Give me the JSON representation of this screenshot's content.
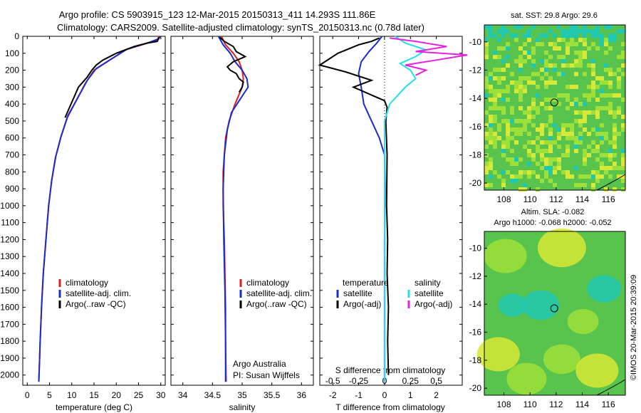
{
  "title": {
    "line1": "Argo profile: CS 5903915_123 12-Mar-2015 20150313_411 14.293S 111.86E",
    "line2": "Climatology: CARS2009. Satellite-adjusted climatology: synTS_20150313.nc (0.78d later)"
  },
  "colors": {
    "clim": "#e02020",
    "sat": "#1a2ccc",
    "argo": "#000000",
    "sal_sat": "#22e0e8",
    "sal_argo": "#e820e0",
    "map_bg": "#58c44e",
    "map_light": "#9ee03a",
    "map_yellow": "#d8e836",
    "map_cyan": "#20c8b0",
    "map_blue": "#2a7ac8"
  },
  "chart_data": [
    {
      "type": "line",
      "name": "temperature",
      "xlabel": "temperature (deg C)",
      "ylabel": "",
      "xlim": [
        -1,
        31
      ],
      "ylim": [
        2060,
        0
      ],
      "xticks": [
        0,
        5,
        10,
        15,
        20,
        25,
        30
      ],
      "yticks": [
        0,
        100,
        200,
        300,
        400,
        500,
        600,
        700,
        800,
        900,
        1000,
        1100,
        1200,
        1300,
        1400,
        1500,
        1600,
        1700,
        1800,
        1900,
        2000
      ],
      "legend": [
        "climatology",
        "satellite-adj. clim.",
        "Argo(..raw -QC)"
      ],
      "legend_placement": "bottom-center",
      "series": [
        {
          "name": "climatology",
          "points": [
            [
              29.6,
              0
            ],
            [
              29.2,
              20
            ],
            [
              27,
              40
            ],
            [
              22,
              80
            ],
            [
              18,
              150
            ],
            [
              15,
              200
            ],
            [
              13,
              280
            ],
            [
              11,
              380
            ],
            [
              9,
              480
            ],
            [
              7.5,
              600
            ],
            [
              6.3,
              720
            ],
            [
              5.5,
              850
            ],
            [
              4.8,
              1000
            ],
            [
              4.2,
              1200
            ],
            [
              3.6,
              1400
            ],
            [
              3.2,
              1600
            ],
            [
              2.9,
              1800
            ],
            [
              2.6,
              2040
            ]
          ]
        },
        {
          "name": "satellite-adj. clim.",
          "points": [
            [
              29.8,
              0
            ],
            [
              29.5,
              15
            ],
            [
              27.5,
              35
            ],
            [
              22.5,
              75
            ],
            [
              18.5,
              140
            ],
            [
              15.5,
              190
            ],
            [
              13.5,
              260
            ],
            [
              11.2,
              370
            ],
            [
              9.1,
              470
            ],
            [
              7.6,
              590
            ],
            [
              6.4,
              710
            ],
            [
              5.5,
              850
            ],
            [
              4.8,
              1000
            ],
            [
              4.2,
              1200
            ],
            [
              3.6,
              1400
            ],
            [
              3.2,
              1600
            ],
            [
              2.9,
              1800
            ],
            [
              2.6,
              2040
            ]
          ]
        },
        {
          "name": "Argo(..raw -QC)",
          "points": [
            [
              29.7,
              5
            ],
            [
              29.2,
              30
            ],
            [
              27,
              40
            ],
            [
              24,
              60
            ],
            [
              20,
              100
            ],
            [
              17,
              140
            ],
            [
              15.5,
              170
            ],
            [
              14.5,
              200
            ],
            [
              13.5,
              240
            ],
            [
              12.5,
              270
            ],
            [
              11.5,
              300
            ],
            [
              10.5,
              360
            ],
            [
              9.5,
              420
            ],
            [
              8.5,
              480
            ]
          ]
        }
      ]
    },
    {
      "type": "line",
      "name": "salinity",
      "xlabel": "salinity",
      "xlim": [
        33.8,
        36.2
      ],
      "ylim": [
        2060,
        0
      ],
      "xticks": [
        34,
        34.5,
        35,
        35.5,
        36
      ],
      "legend": [
        "climatology",
        "satellite-adj. clim.",
        "Argo(..raw -QC)"
      ],
      "legend_placement": "bottom-center",
      "annotation": [
        "Argo Australia",
        "PI: Susan Wijffels"
      ],
      "series": [
        {
          "name": "climatology",
          "points": [
            [
              34.65,
              0
            ],
            [
              34.72,
              50
            ],
            [
              34.85,
              100
            ],
            [
              34.95,
              150
            ],
            [
              35.0,
              200
            ],
            [
              35.02,
              250
            ],
            [
              35.0,
              300
            ],
            [
              34.88,
              400
            ],
            [
              34.78,
              500
            ],
            [
              34.72,
              600
            ],
            [
              34.68,
              800
            ],
            [
              34.68,
              1000
            ],
            [
              34.7,
              1200
            ],
            [
              34.71,
              1400
            ],
            [
              34.72,
              1600
            ],
            [
              34.72,
              1800
            ],
            [
              34.73,
              2040
            ]
          ]
        },
        {
          "name": "satellite-adj. clim.",
          "points": [
            [
              34.6,
              0
            ],
            [
              34.68,
              50
            ],
            [
              34.8,
              100
            ],
            [
              34.88,
              150
            ],
            [
              35.0,
              200
            ],
            [
              35.08,
              250
            ],
            [
              35.1,
              300
            ],
            [
              34.95,
              380
            ],
            [
              34.82,
              450
            ],
            [
              34.75,
              550
            ],
            [
              34.7,
              700
            ],
            [
              34.68,
              900
            ],
            [
              34.69,
              1200
            ],
            [
              34.71,
              1500
            ],
            [
              34.72,
              1800
            ],
            [
              34.72,
              2040
            ]
          ]
        },
        {
          "name": "Argo(..raw -QC)",
          "points": [
            [
              34.62,
              5
            ],
            [
              34.7,
              30
            ],
            [
              34.85,
              60
            ],
            [
              34.9,
              90
            ],
            [
              35.05,
              120
            ],
            [
              34.85,
              150
            ],
            [
              34.75,
              180
            ],
            [
              34.8,
              200
            ],
            [
              34.9,
              220
            ],
            [
              34.95,
              250
            ],
            [
              35.02,
              270
            ],
            [
              35.0,
              300
            ],
            [
              34.95,
              330
            ]
          ]
        }
      ]
    },
    {
      "type": "line",
      "name": "difference",
      "xlabel": "T difference from climatology",
      "x2label": "S difference from climatology",
      "xlim": [
        -2.5,
        3
      ],
      "ylim": [
        2060,
        0
      ],
      "xticks": [
        -2,
        -1,
        0,
        1,
        2
      ],
      "x2ticks": [
        -0.5,
        -0.25,
        0,
        0.25,
        0.5
      ],
      "legend_temperature": [
        "temperature",
        "satellite",
        "Argo(-adj)"
      ],
      "legend_salinity": [
        "salinity",
        "satellite",
        "Argo(-adj)"
      ],
      "series": [
        {
          "name": "T satellite",
          "points": [
            [
              -0.1,
              0
            ],
            [
              -0.3,
              40
            ],
            [
              -0.6,
              90
            ],
            [
              -0.9,
              150
            ],
            [
              -1.0,
              220
            ],
            [
              -0.9,
              300
            ],
            [
              -0.8,
              400
            ],
            [
              -0.5,
              500
            ],
            [
              -0.2,
              600
            ],
            [
              0,
              700
            ],
            [
              0.02,
              900
            ],
            [
              0,
              1200
            ],
            [
              0,
              1600
            ],
            [
              0,
              2040
            ]
          ]
        },
        {
          "name": "T Argo(-adj)",
          "points": [
            [
              -0.2,
              10
            ],
            [
              -0.5,
              30
            ],
            [
              -1.0,
              50
            ],
            [
              -1.8,
              100
            ],
            [
              -2.5,
              170
            ],
            [
              -1.5,
              210
            ],
            [
              -0.5,
              260
            ],
            [
              -1.2,
              300
            ],
            [
              0,
              380
            ],
            [
              0.1,
              420
            ],
            [
              0.05,
              500
            ],
            [
              0.1,
              700
            ],
            [
              0.08,
              1000
            ],
            [
              0.12,
              1200
            ],
            [
              0.1,
              1400
            ],
            [
              0.15,
              1600
            ],
            [
              0.12,
              1800
            ],
            [
              0.15,
              2000
            ]
          ]
        },
        {
          "name": "S satellite",
          "points": [
            [
              0.1,
              0
            ],
            [
              0.2,
              40
            ],
            [
              0.4,
              80
            ],
            [
              0.3,
              120
            ],
            [
              0.15,
              160
            ],
            [
              0.25,
              200
            ],
            [
              0.3,
              250
            ],
            [
              0.2,
              300
            ],
            [
              0.05,
              400
            ],
            [
              0,
              500
            ],
            [
              0,
              1000
            ],
            [
              0,
              2040
            ]
          ]
        },
        {
          "name": "S Argo(-adj)",
          "points": [
            [
              0.05,
              10
            ],
            [
              0.3,
              30
            ],
            [
              0.6,
              60
            ],
            [
              0.3,
              90
            ],
            [
              0.8,
              110
            ],
            [
              0.5,
              140
            ],
            [
              0.2,
              170
            ],
            [
              0.4,
              200
            ],
            [
              0.3,
              230
            ]
          ]
        }
      ]
    }
  ],
  "map_top": {
    "title": "sat. SST: 29.8 Argo: 29.6",
    "xticks": [
      108,
      110,
      112,
      114,
      116
    ],
    "yticks": [
      -10,
      -12,
      -14,
      -16,
      -18,
      -20
    ],
    "xlim": [
      106.5,
      117.3
    ],
    "ylim": [
      -20.5,
      -8.8
    ],
    "marker": {
      "lon": 111.86,
      "lat": -14.293
    }
  },
  "map_bottom": {
    "title1": "Altim. SLA: -0.082",
    "title2": "Argo h1000: -0.068 h2000: -0.052",
    "xticks": [
      108,
      110,
      112,
      114,
      116
    ],
    "yticks": [
      -10,
      -12,
      -14,
      -16,
      -18,
      -20
    ],
    "xlim": [
      106.5,
      117.3
    ],
    "ylim": [
      -20.5,
      -8.8
    ],
    "marker": {
      "lon": 111.86,
      "lat": -14.293
    }
  },
  "credit": "©IMOS 20-Mar-2015 20:39:09"
}
